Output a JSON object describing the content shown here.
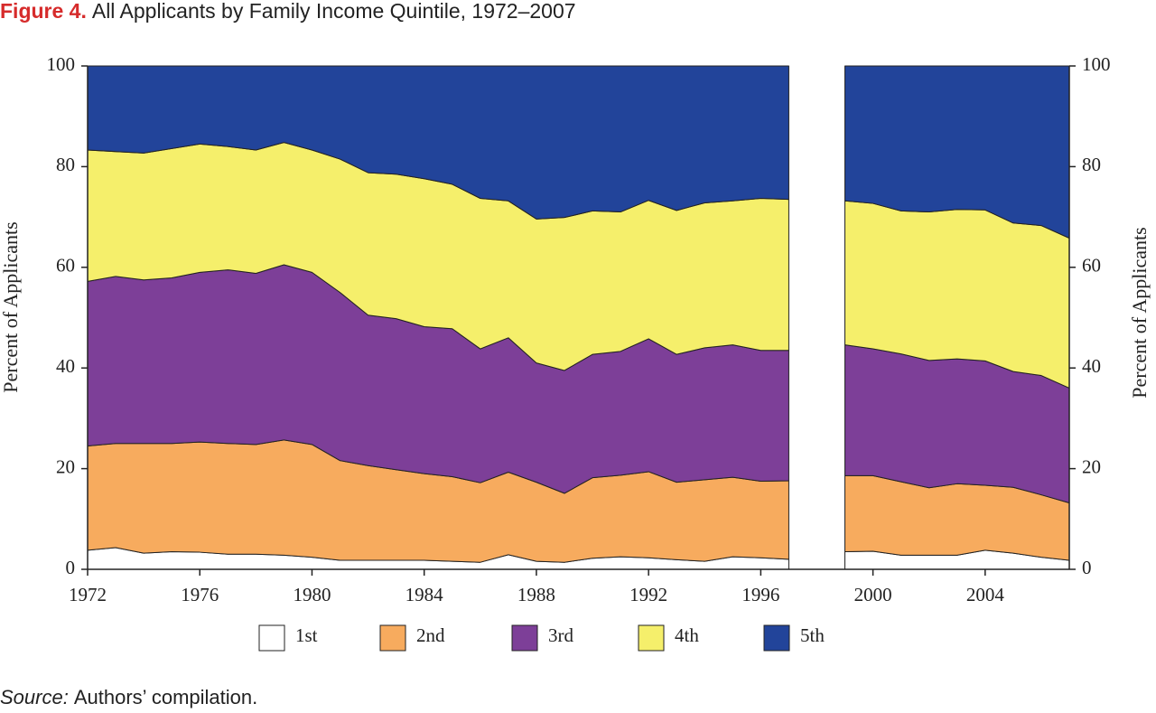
{
  "chart_data": {
    "type": "stacked_area",
    "figure_label": "Figure 4.",
    "title": "All Applicants by Family Income Quintile, 1972–2007",
    "ylabel": "Percent of Applicants",
    "y2label": "Percent of Applicants",
    "source_label": "Source:",
    "source": "Authors’ compilation.",
    "x": [
      1972,
      1973,
      1974,
      1975,
      1976,
      1977,
      1978,
      1979,
      1980,
      1981,
      1982,
      1983,
      1984,
      1985,
      1986,
      1987,
      1988,
      1989,
      1990,
      1991,
      1992,
      1993,
      1994,
      1995,
      1996,
      1997,
      1998,
      1999,
      2000,
      2001,
      2002,
      2003,
      2004,
      2005,
      2006,
      2007
    ],
    "xlim": [
      1972,
      2007
    ],
    "xticks": [
      1972,
      1976,
      1980,
      1984,
      1988,
      1992,
      1996,
      2000,
      2004
    ],
    "ylim": [
      0,
      100
    ],
    "yticks": [
      0,
      20,
      40,
      60,
      80,
      100
    ],
    "y2lim": [
      0,
      100
    ],
    "y2ticks": [
      0,
      20,
      40,
      60,
      80,
      100
    ],
    "legend": "bottom",
    "series": [
      {
        "name": "1st",
        "color": "#ffffff",
        "values": [
          3.8,
          4.3,
          3.2,
          3.5,
          3.4,
          3.0,
          3.0,
          2.8,
          2.4,
          1.8,
          1.8,
          1.8,
          1.8,
          1.6,
          1.4,
          2.9,
          1.6,
          1.4,
          2.2,
          2.5,
          2.3,
          1.9,
          1.6,
          2.5,
          2.3,
          2.0,
          null,
          3.5,
          3.6,
          2.8,
          2.8,
          2.8,
          3.8,
          3.2,
          2.4,
          1.8
        ]
      },
      {
        "name": "2nd",
        "color": "#f7ab5e",
        "values": [
          20.7,
          20.7,
          21.8,
          21.5,
          21.9,
          22.0,
          21.8,
          22.9,
          22.4,
          19.8,
          18.8,
          18.0,
          17.2,
          16.8,
          15.8,
          16.4,
          15.7,
          13.7,
          16.0,
          16.2,
          17.1,
          15.4,
          16.2,
          15.8,
          15.2,
          15.6,
          null,
          15.1,
          15.0,
          14.6,
          13.4,
          14.2,
          12.9,
          13.1,
          12.4,
          11.4
        ]
      },
      {
        "name": "3rd",
        "color": "#7d3f98",
        "values": [
          32.7,
          33.2,
          32.5,
          32.9,
          33.7,
          34.5,
          34.0,
          34.8,
          34.2,
          33.4,
          29.9,
          30.0,
          29.2,
          29.4,
          26.6,
          26.7,
          23.7,
          24.4,
          24.5,
          24.6,
          26.4,
          25.4,
          26.2,
          26.3,
          26.0,
          25.9,
          null,
          26.0,
          25.2,
          25.4,
          25.3,
          24.8,
          24.7,
          23.0,
          23.7,
          22.8
        ]
      },
      {
        "name": "4th",
        "color": "#f5ef6b",
        "values": [
          26.1,
          24.8,
          25.2,
          25.7,
          25.5,
          24.5,
          24.5,
          24.3,
          24.3,
          26.5,
          28.3,
          28.7,
          29.4,
          28.7,
          29.9,
          27.2,
          28.6,
          30.4,
          28.5,
          27.7,
          27.5,
          28.6,
          28.8,
          28.6,
          30.2,
          30.0,
          null,
          28.6,
          28.9,
          28.4,
          29.5,
          29.7,
          30.0,
          29.5,
          29.8,
          29.8
        ]
      },
      {
        "name": "5th",
        "color": "#22449a",
        "values": [
          16.7,
          17.0,
          17.3,
          16.4,
          15.5,
          16.0,
          16.7,
          15.2,
          16.7,
          18.5,
          21.2,
          21.5,
          22.4,
          23.5,
          26.3,
          26.8,
          30.4,
          30.1,
          28.8,
          29.0,
          26.7,
          28.7,
          27.2,
          26.8,
          26.3,
          26.5,
          null,
          26.8,
          27.3,
          28.8,
          29.0,
          28.5,
          28.6,
          31.2,
          31.7,
          34.2
        ]
      }
    ]
  }
}
